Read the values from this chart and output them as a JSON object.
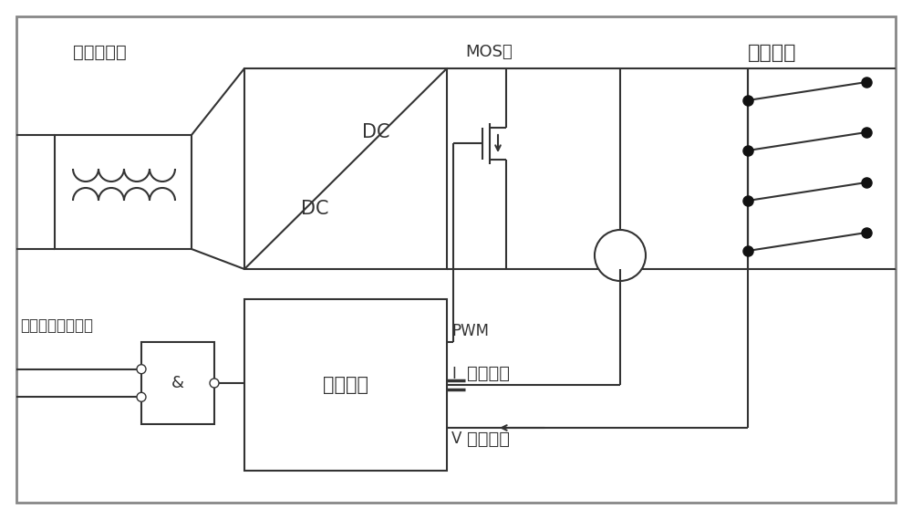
{
  "bg_color": "#ffffff",
  "line_color": "#333333",
  "labels": {
    "common_mode": "共模拼流圈",
    "mos": "MOS管",
    "heating": "电热元件",
    "collector": "集电极开路与非门",
    "mcu": "微处理器",
    "pwm": "PWM",
    "current": "电流采集",
    "voltage": "电压采集",
    "and_symbol": "&",
    "I_label": "I",
    "V_label": "V",
    "DC_top": "DC",
    "DC_bot": "DC"
  }
}
